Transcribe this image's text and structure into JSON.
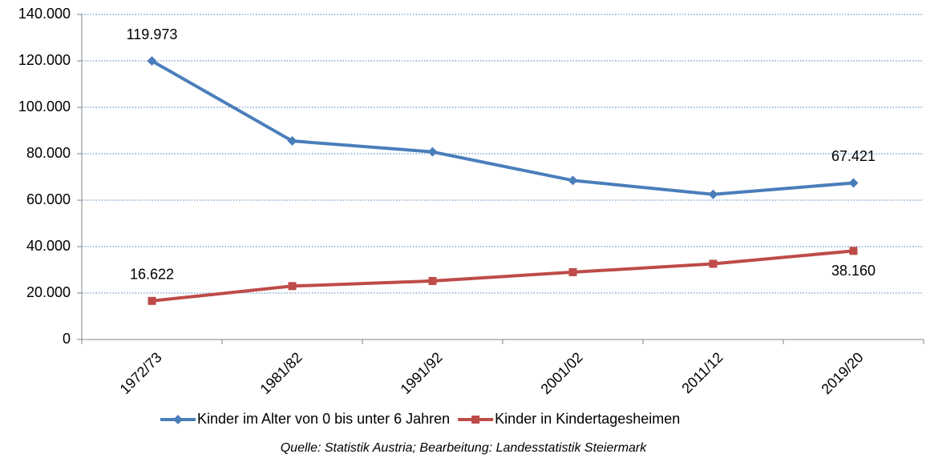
{
  "chart_data": {
    "type": "line",
    "categories": [
      "1972/73",
      "1981/82",
      "1991/92",
      "2001/02",
      "2011/12",
      "2019/20"
    ],
    "series": [
      {
        "name": "Kinder im Alter von 0 bis unter 6 Jahren",
        "color": "#4a7ebb",
        "marker": "diamond",
        "values": [
          119973,
          85500,
          80800,
          68500,
          62500,
          67421
        ],
        "value_labels": [
          "119.973",
          null,
          null,
          null,
          null,
          "67.421"
        ]
      },
      {
        "name": "Kinder in Kindertagesheimen",
        "color": "#be4b48",
        "marker": "square",
        "values": [
          16622,
          23000,
          25200,
          29000,
          32600,
          38160
        ],
        "value_labels": [
          "16.622",
          null,
          null,
          null,
          null,
          "38.160"
        ]
      }
    ],
    "ylim": [
      0,
      140000
    ],
    "yticks": [
      0,
      {
        "value": 20000,
        "label": "20.000"
      },
      {
        "value": 40000,
        "label": "40.000"
      },
      {
        "value": 60000,
        "label": "60.000"
      },
      {
        "value": 80000,
        "label": "80.000"
      },
      {
        "value": 100000,
        "label": "100.000"
      },
      {
        "value": 120000,
        "label": "120.000"
      },
      {
        "value": 140000,
        "label": "140.000"
      }
    ],
    "grid": true,
    "legend": "bottom",
    "source": "Quelle: Statistik Austria; Bearbeitung: Landesstatistik Steiermark"
  }
}
